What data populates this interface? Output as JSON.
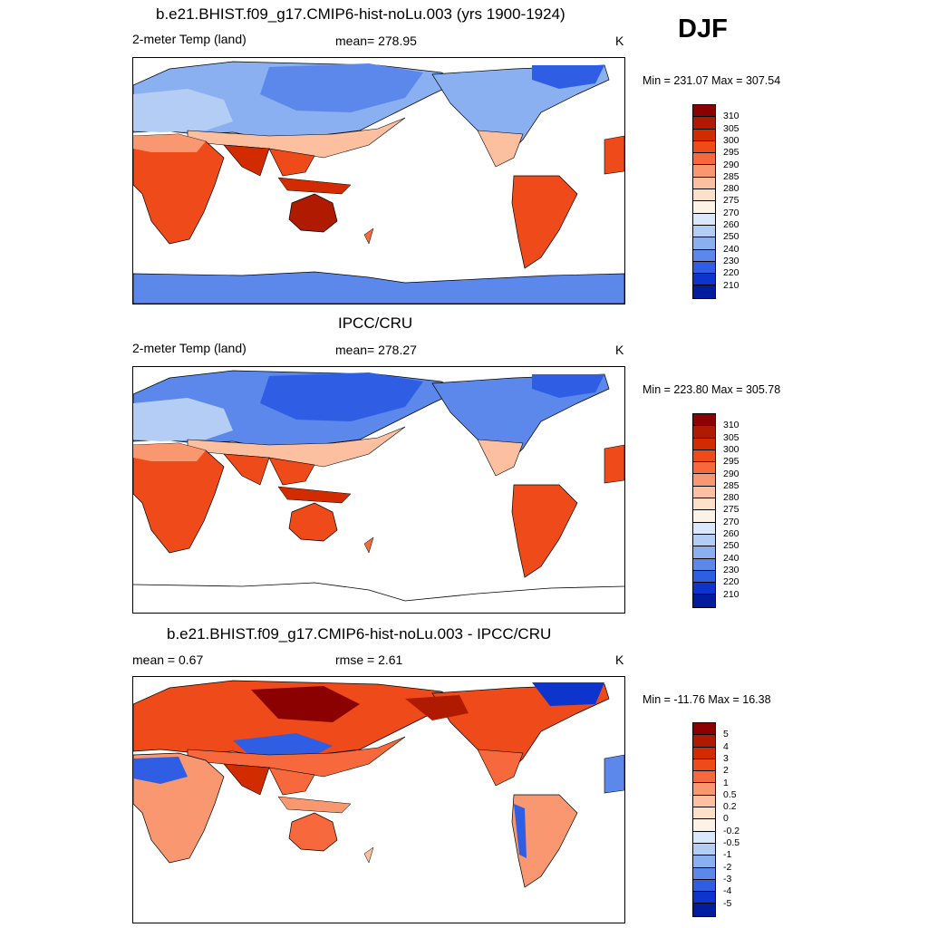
{
  "season": "DJF",
  "units": "K",
  "panels": [
    {
      "title": "b.e21.BHIST.f09_g17.CMIP6-hist-noLu.003 (yrs 1900-1924)",
      "left_label": "2-meter Temp (land)",
      "center_label": "mean= 278.95",
      "units": "K",
      "minmax": "Min = 231.07 Max = 307.54",
      "colorbar": {
        "levels": [
          "310",
          "305",
          "300",
          "295",
          "290",
          "285",
          "280",
          "275",
          "270",
          "260",
          "250",
          "240",
          "230",
          "220",
          "210"
        ],
        "colors": [
          "#8b0000",
          "#b01a00",
          "#d22b00",
          "#ee4a1a",
          "#f7683c",
          "#f99770",
          "#fcbfa0",
          "#fde0c8",
          "#fdf2e6",
          "#d9e8fa",
          "#b4cdf5",
          "#8ab0f1",
          "#5b88ea",
          "#2f5ee4",
          "#0d35cd",
          "#001c9f"
        ]
      }
    },
    {
      "title": "IPCC/CRU",
      "left_label": "2-meter Temp (land)",
      "center_label": "mean= 278.27",
      "units": "K",
      "minmax": "Min = 223.80 Max = 305.78",
      "colorbar": {
        "levels": [
          "310",
          "305",
          "300",
          "295",
          "290",
          "285",
          "280",
          "275",
          "270",
          "260",
          "250",
          "240",
          "230",
          "220",
          "210"
        ],
        "colors": [
          "#8b0000",
          "#b01a00",
          "#d22b00",
          "#ee4a1a",
          "#f7683c",
          "#f99770",
          "#fcbfa0",
          "#fde0c8",
          "#fdf2e6",
          "#d9e8fa",
          "#b4cdf5",
          "#8ab0f1",
          "#5b88ea",
          "#2f5ee4",
          "#0d35cd",
          "#001c9f"
        ]
      }
    },
    {
      "title": "b.e21.BHIST.f09_g17.CMIP6-hist-noLu.003 - IPCC/CRU",
      "left_label": "mean =   0.67",
      "center_label": "rmse =   2.61",
      "units": "K",
      "minmax": "Min = -11.76 Max =  16.38",
      "colorbar": {
        "levels": [
          "5",
          "4",
          "3",
          "2",
          "1",
          "0.5",
          "0.2",
          "0",
          "-0.2",
          "-0.5",
          "-1",
          "-2",
          "-3",
          "-4",
          "-5"
        ],
        "colors": [
          "#8b0000",
          "#b01a00",
          "#d22b00",
          "#ee4a1a",
          "#f7683c",
          "#f99770",
          "#fcbfa0",
          "#fde0c8",
          "#fdf2e6",
          "#d9e8fa",
          "#b4cdf5",
          "#8ab0f1",
          "#5b88ea",
          "#2f5ee4",
          "#0d35cd",
          "#001c9f"
        ]
      }
    }
  ]
}
